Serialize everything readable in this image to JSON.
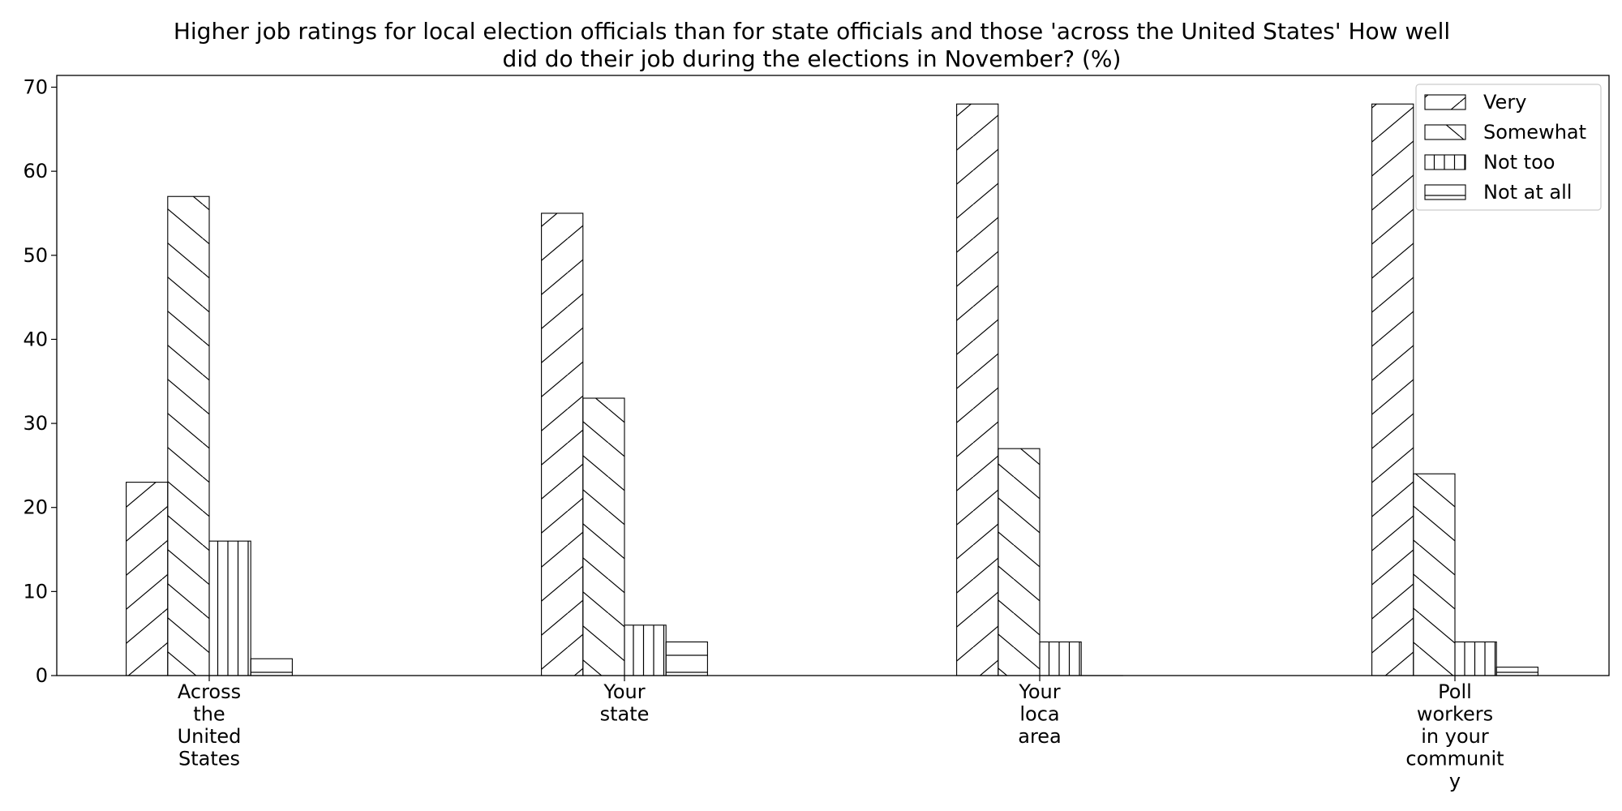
{
  "chart_data": {
    "type": "bar",
    "title_lines": [
      "Higher job ratings for local election officials than for state officials and those 'across the United States' How well",
      "did do their job during the elections in November? (%)"
    ],
    "xlabel": "",
    "ylabel": "",
    "ylim": [
      0,
      71.4
    ],
    "yticks": [
      0,
      10,
      20,
      30,
      40,
      50,
      60,
      70
    ],
    "grid": false,
    "legend_position": "top-right",
    "categories": [
      [
        "Across",
        "the",
        "United",
        "States"
      ],
      [
        "Your",
        "state"
      ],
      [
        "Your",
        "loca",
        "area"
      ],
      [
        "Poll",
        "workers",
        "in your",
        "communit",
        "y"
      ]
    ],
    "series": [
      {
        "name": "Very",
        "hatch": "diag-up",
        "values": [
          23,
          55,
          68,
          68
        ]
      },
      {
        "name": "Somewhat",
        "hatch": "diag-down",
        "values": [
          57,
          33,
          27,
          24
        ]
      },
      {
        "name": "Not too",
        "hatch": "vertical",
        "values": [
          16,
          6,
          4,
          4
        ]
      },
      {
        "name": "Not at all",
        "hatch": "horizontal",
        "values": [
          2,
          4,
          0,
          1
        ]
      }
    ]
  }
}
